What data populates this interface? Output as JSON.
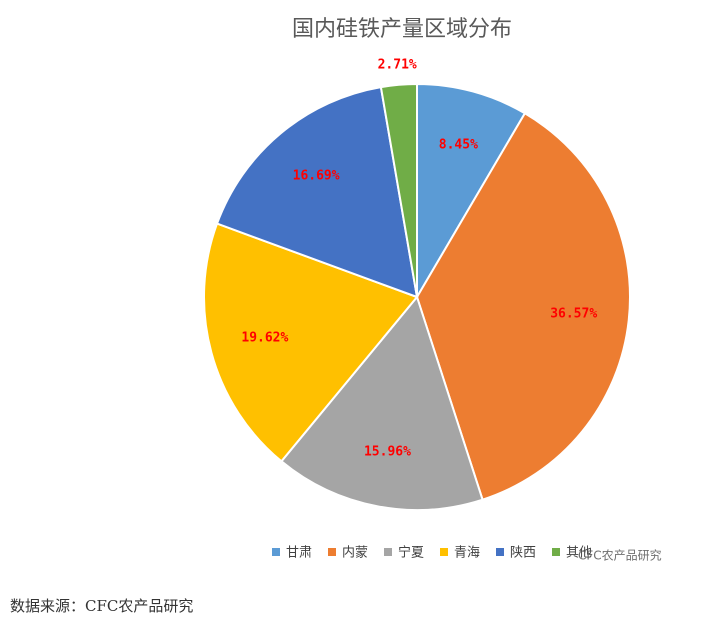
{
  "chart_data": {
    "type": "pie",
    "title": "国内硅铁产量区域分布",
    "categories": [
      "甘肃",
      "内蒙",
      "宁夏",
      "青海",
      "陕西",
      "其他"
    ],
    "values": [
      8.45,
      36.57,
      15.96,
      19.62,
      16.69,
      2.71
    ],
    "value_labels": [
      "8.45%",
      "36.57%",
      "15.96%",
      "19.62%",
      "16.69%",
      "2.71%"
    ],
    "colors": [
      "#5b9bd5",
      "#ed7d31",
      "#a5a5a5",
      "#ffc000",
      "#4472c4",
      "#70ad47"
    ],
    "label_color": "#ff0000",
    "legend": "bottom",
    "watermark": "CFC农产品研究"
  },
  "source": "数据来源：CFC农产品研究"
}
